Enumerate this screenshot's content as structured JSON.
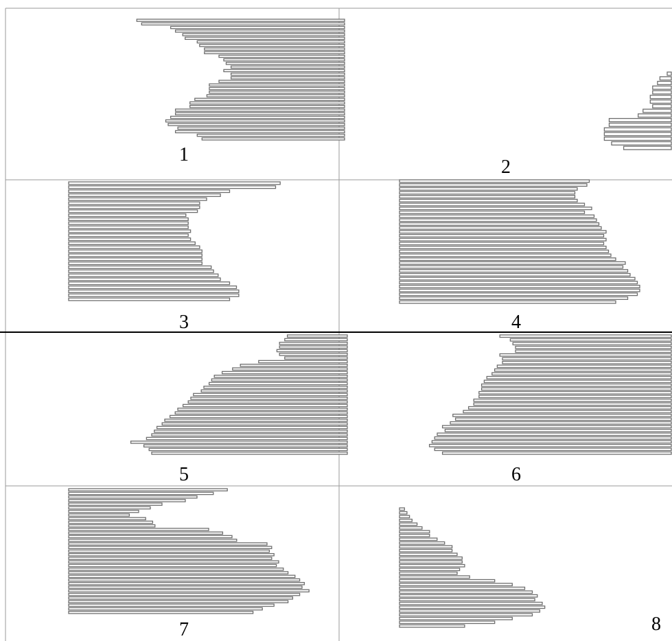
{
  "panels": [
    {
      "label": "1",
      "anchor": "right",
      "widths": [
        0.86,
        0.84,
        0.72,
        0.7,
        0.67,
        0.66,
        0.61,
        0.6,
        0.58,
        0.58,
        0.52,
        0.5,
        0.49,
        0.47,
        0.5,
        0.47,
        0.47,
        0.52,
        0.56,
        0.56,
        0.56,
        0.57,
        0.62,
        0.64,
        0.64,
        0.7,
        0.7,
        0.72,
        0.74,
        0.73,
        0.69,
        0.7,
        0.61,
        0.59
      ]
    },
    {
      "label": "2",
      "anchor": "right",
      "widths": [
        0.02,
        0.05,
        0.06,
        0.08,
        0.08,
        0.09,
        0.09,
        0.08,
        0.12,
        0.14,
        0.26,
        0.26,
        0.28,
        0.28,
        0.28,
        0.25,
        0.2
      ]
    },
    {
      "label": "3",
      "anchor": "left",
      "widths": [
        0.92,
        0.9,
        0.7,
        0.66,
        0.6,
        0.57,
        0.57,
        0.56,
        0.51,
        0.52,
        0.52,
        0.52,
        0.53,
        0.52,
        0.53,
        0.55,
        0.57,
        0.58,
        0.58,
        0.58,
        0.58,
        0.62,
        0.63,
        0.65,
        0.66,
        0.7,
        0.73,
        0.74,
        0.74,
        0.7
      ]
    },
    {
      "label": "4",
      "anchor": "left",
      "widths": [
        0.79,
        0.78,
        0.74,
        0.73,
        0.73,
        0.74,
        0.77,
        0.8,
        0.77,
        0.81,
        0.82,
        0.83,
        0.84,
        0.86,
        0.85,
        0.86,
        0.85,
        0.86,
        0.87,
        0.88,
        0.9,
        0.94,
        0.93,
        0.95,
        0.96,
        0.98,
        0.99,
        1.0,
        1.0,
        0.99,
        0.95,
        0.9
      ]
    },
    {
      "label": "5",
      "anchor": "right",
      "widths": [
        0.23,
        0.24,
        0.26,
        0.26,
        0.27,
        0.26,
        0.24,
        0.34,
        0.41,
        0.44,
        0.48,
        0.51,
        0.52,
        0.53,
        0.55,
        0.56,
        0.59,
        0.6,
        0.61,
        0.63,
        0.65,
        0.66,
        0.68,
        0.7,
        0.71,
        0.73,
        0.74,
        0.75,
        0.77,
        0.83,
        0.78,
        0.76,
        0.75
      ]
    },
    {
      "label": "6",
      "anchor": "right",
      "widths": [
        0.66,
        0.62,
        0.61,
        0.6,
        0.6,
        0.66,
        0.65,
        0.65,
        0.67,
        0.68,
        0.69,
        0.71,
        0.72,
        0.73,
        0.73,
        0.74,
        0.74,
        0.76,
        0.76,
        0.78,
        0.8,
        0.84,
        0.83,
        0.85,
        0.88,
        0.87,
        0.9,
        0.91,
        0.92,
        0.93,
        0.91,
        0.88
      ]
    },
    {
      "label": "7",
      "anchor": "left",
      "widths": [
        0.68,
        0.62,
        0.55,
        0.5,
        0.4,
        0.35,
        0.3,
        0.26,
        0.33,
        0.36,
        0.37,
        0.6,
        0.66,
        0.7,
        0.72,
        0.85,
        0.87,
        0.86,
        0.88,
        0.87,
        0.9,
        0.89,
        0.92,
        0.94,
        0.97,
        0.99,
        1.01,
        1.0,
        1.03,
        0.99,
        0.96,
        0.94,
        0.88,
        0.83,
        0.79
      ]
    },
    {
      "label": "8",
      "anchor": "left",
      "widths": [
        0.02,
        0.03,
        0.04,
        0.05,
        0.07,
        0.09,
        0.12,
        0.12,
        0.15,
        0.18,
        0.21,
        0.21,
        0.23,
        0.25,
        0.25,
        0.26,
        0.24,
        0.23,
        0.28,
        0.38,
        0.45,
        0.5,
        0.53,
        0.55,
        0.54,
        0.57,
        0.58,
        0.56,
        0.53,
        0.45,
        0.38,
        0.26
      ]
    }
  ]
}
